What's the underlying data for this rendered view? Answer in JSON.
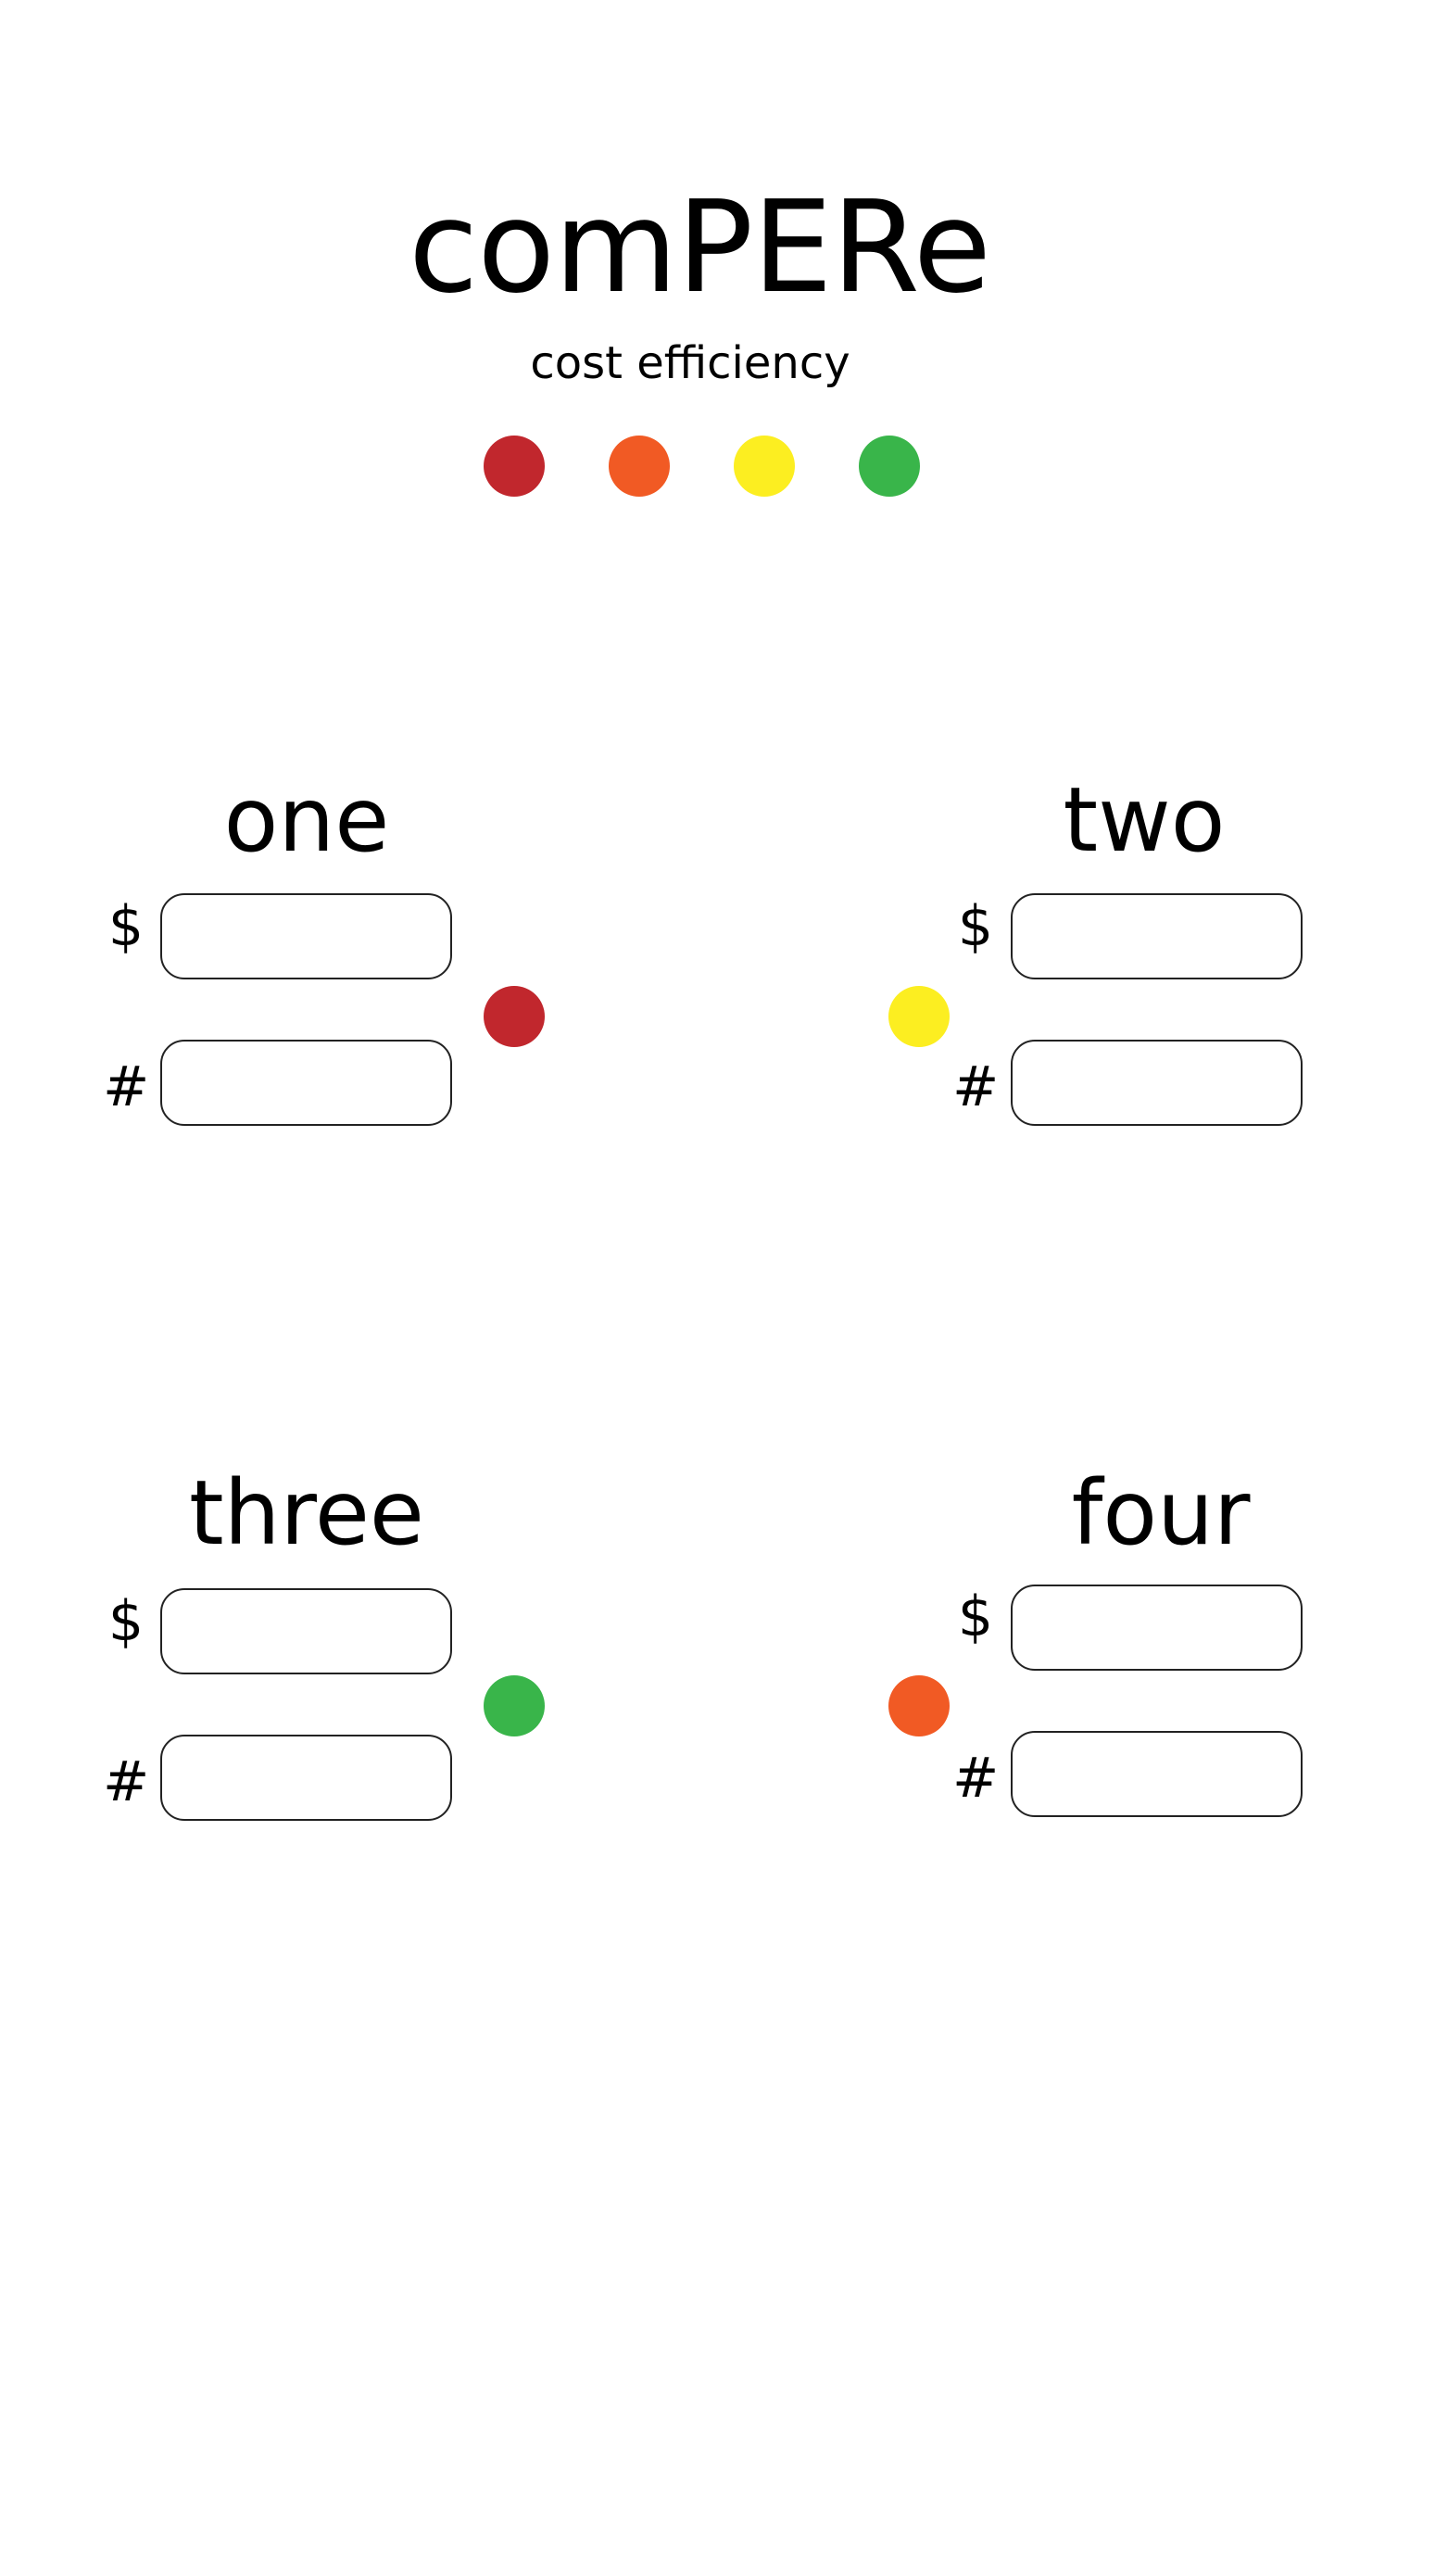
{
  "header": {
    "title": "comPERe",
    "subtitle": "cost efficiency"
  },
  "legend": {
    "colors": [
      "#c1272d",
      "#f15a24",
      "#fcee21",
      "#39b54a"
    ]
  },
  "field_symbols": {
    "cost": "$",
    "count": "#"
  },
  "sections": [
    {
      "title": "one",
      "cost_value": "",
      "count_value": "",
      "indicator_color": "#c1272d"
    },
    {
      "title": "two",
      "cost_value": "",
      "count_value": "",
      "indicator_color": "#fcee21"
    },
    {
      "title": "three",
      "cost_value": "",
      "count_value": "",
      "indicator_color": "#39b54a"
    },
    {
      "title": "four",
      "cost_value": "",
      "count_value": "",
      "indicator_color": "#f15a24"
    }
  ]
}
